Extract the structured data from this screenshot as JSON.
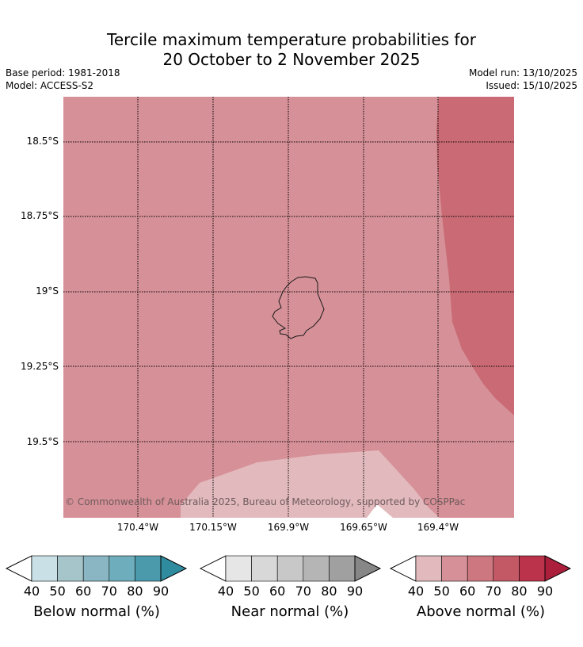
{
  "title": {
    "line1": "Tercile maximum temperature probabilities for",
    "line2": "20 October to 2 November 2025"
  },
  "meta": {
    "base_period": "Base period: 1981-2018",
    "model": "Model: ACCESS-S2",
    "model_run": "Model run: 13/10/2025",
    "issued": "Issued: 15/10/2025"
  },
  "map": {
    "lat_labels": [
      "18.5°S",
      "18.75°S",
      "19°S",
      "19.25°S",
      "19.5°S"
    ],
    "lon_labels": [
      "170.4°W",
      "170.15°W",
      "169.9°W",
      "169.65°W",
      "169.4°W"
    ],
    "copyright": "© Commonwealth of Australia 2025, Bureau of Meteorology, supported by COSPPac",
    "region_colors": {
      "above_50_60": "#d69097",
      "above_40_50": "#e2babe",
      "above_60_70": "#c96a74"
    }
  },
  "colorbars": [
    {
      "name": "below",
      "label": "Below normal (%)",
      "ticks": [
        "40",
        "50",
        "60",
        "70",
        "80",
        "90"
      ],
      "colors": [
        "#c9e1e6",
        "#a6c5ca",
        "#89b6c2",
        "#6eadbb",
        "#4a9aab",
        "#2f8c9f"
      ]
    },
    {
      "name": "near",
      "label": "Near normal (%)",
      "ticks": [
        "40",
        "50",
        "60",
        "70",
        "80",
        "90"
      ],
      "colors": [
        "#e6e6e6",
        "#d8d8d8",
        "#c8c8c8",
        "#b5b5b5",
        "#a0a0a0",
        "#878787"
      ]
    },
    {
      "name": "above",
      "label": "Above normal (%)",
      "ticks": [
        "40",
        "50",
        "60",
        "70",
        "80",
        "90"
      ],
      "colors": [
        "#e2babe",
        "#d69097",
        "#cd7880",
        "#c45966",
        "#bb324b",
        "#ab1f3c"
      ]
    }
  ]
}
